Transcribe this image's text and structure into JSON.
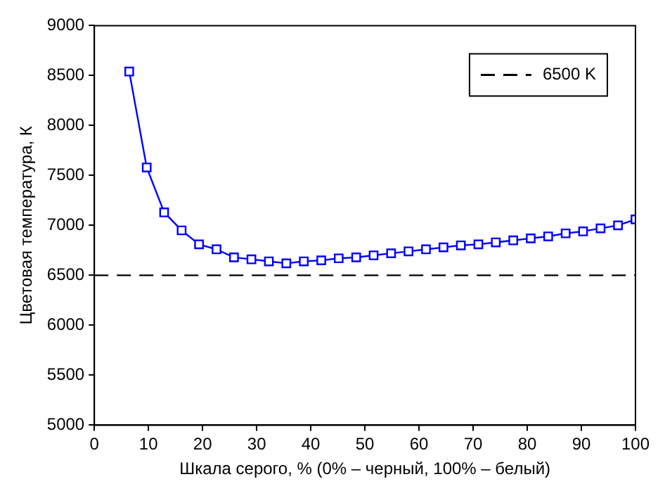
{
  "chart_data": {
    "type": "line",
    "ylabel": "Цветовая температура, К",
    "xlabel": "Шкала серого, % (0% – черный, 100% – белый)",
    "xlim": [
      0,
      100
    ],
    "xticks": [
      0,
      10,
      20,
      30,
      40,
      50,
      60,
      70,
      80,
      90,
      100
    ],
    "ylim": [
      5000,
      9000
    ],
    "yticks": [
      5000,
      5500,
      6000,
      6500,
      7000,
      7500,
      8000,
      8500,
      9000
    ],
    "grid": false,
    "legend": "top right",
    "series": [
      {
        "color": "#0000ff",
        "marker": "square",
        "x": [
          6.45,
          9.68,
          12.9,
          16.13,
          19.35,
          22.58,
          25.81,
          29.03,
          32.26,
          35.48,
          38.71,
          41.94,
          45.16,
          48.39,
          51.61,
          54.84,
          58.06,
          61.29,
          64.52,
          67.74,
          70.97,
          74.19,
          77.42,
          80.65,
          83.87,
          87.1,
          90.32,
          93.55,
          96.77,
          100
        ],
        "values": [
          8540,
          7580,
          7130,
          6950,
          6810,
          6760,
          6680,
          6660,
          6640,
          6620,
          6640,
          6650,
          6670,
          6680,
          6700,
          6720,
          6740,
          6760,
          6780,
          6800,
          6810,
          6830,
          6850,
          6870,
          6890,
          6920,
          6940,
          6970,
          7000,
          7060
        ]
      },
      {
        "name": "6500 K",
        "color": "#000000",
        "marker": "none",
        "line_style": "dashed",
        "x": [
          0,
          100
        ],
        "values": [
          6500,
          6500
        ]
      }
    ]
  }
}
